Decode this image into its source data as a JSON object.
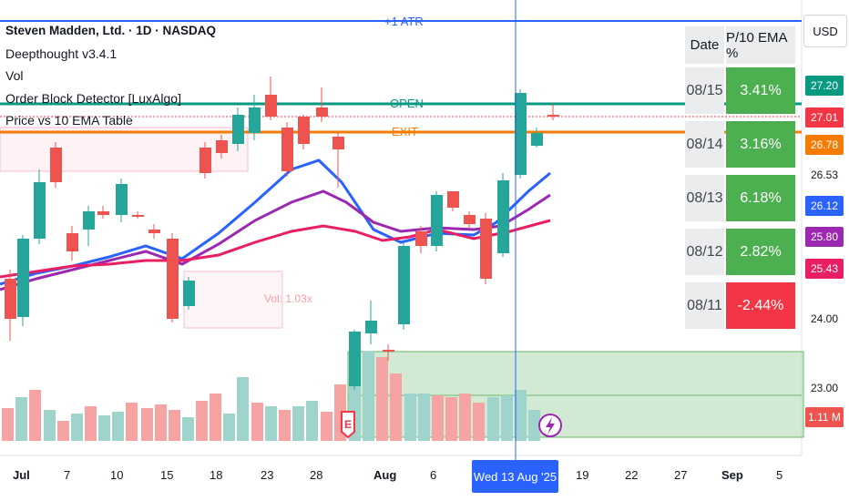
{
  "legend": {
    "title": "Steven Madden, Ltd. · 1D · NASDAQ",
    "indicator1": "Deepthought v3.4.1",
    "indicator2": "Vol",
    "indicator3": "Order Block Detector [LuxAlgo]",
    "indicator4": "Price vs 10 EMA Table"
  },
  "currency": "USD",
  "lines": {
    "atr": "+1 ATR",
    "open": "OPEN",
    "exit": "EXIT",
    "vol_box": "Vol: 1.03x"
  },
  "table": {
    "header": {
      "date": "Date",
      "value": "P/10 EMA %"
    },
    "rows": [
      {
        "date": "08/15",
        "value": "3.41%",
        "color": "#4caf50"
      },
      {
        "date": "08/14",
        "value": "3.16%",
        "color": "#4caf50"
      },
      {
        "date": "08/13",
        "value": "6.18%",
        "color": "#4caf50"
      },
      {
        "date": "08/12",
        "value": "2.82%",
        "color": "#4caf50"
      },
      {
        "date": "08/11",
        "value": "-2.44%",
        "color": "#f23645"
      }
    ]
  },
  "price_axis": {
    "tags": [
      {
        "label": "27.20",
        "color": "#089981"
      },
      {
        "label": "27.01",
        "color": "#f23645"
      },
      {
        "label": "26.78",
        "color": "#f57c00"
      },
      {
        "label": "26.12",
        "color": "#2962ff"
      },
      {
        "label": "25.80",
        "color": "#9c27b0"
      },
      {
        "label": "25.43",
        "color": "#e91e63"
      },
      {
        "label": "1.11 M",
        "color": "#ef5350"
      }
    ],
    "plain": [
      "26.53",
      "24.00",
      "23.00"
    ]
  },
  "time_axis": {
    "labels": [
      "Jul",
      "7",
      "10",
      "15",
      "18",
      "23",
      "28",
      "Aug",
      "6",
      "19",
      "22",
      "27",
      "Sep",
      "5"
    ],
    "crosshair_date": "Wed 13 Aug '25"
  },
  "markers": {
    "earnings": "E"
  },
  "colors": {
    "up": "#26a69a",
    "down": "#ef5350",
    "ema_fast": "#2962ff",
    "ema_mid": "#9c27b0",
    "ema_slow": "#e91e63",
    "open_line": "#089981",
    "exit_line": "#f57c00",
    "atr_line": "#2962ff"
  }
}
